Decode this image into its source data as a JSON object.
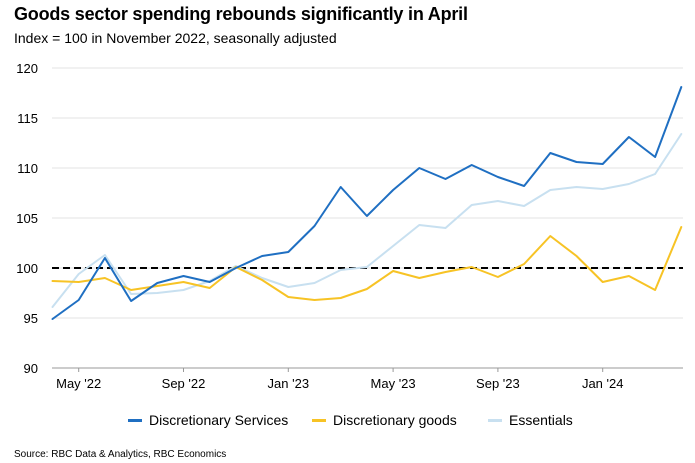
{
  "title": "Goods sector spending rebounds significantly in April",
  "subtitle": "Index = 100 in November 2022, seasonally adjusted",
  "source": "Source: RBC Data & Analytics, RBC Economics",
  "colors": {
    "discretionary_services": "#1f6fc2",
    "discretionary_goods": "#f7c325",
    "essentials": "#c8e0f0",
    "reference_line": "#000000",
    "grid": "#e3e3e3"
  },
  "chart_data": {
    "type": "line",
    "title": "Goods sector spending rebounds significantly in April",
    "subtitle": "Index = 100 in November 2022, seasonally adjusted",
    "xlabel": "",
    "ylabel": "",
    "ylim": [
      90,
      120
    ],
    "yticks": [
      90,
      95,
      100,
      105,
      110,
      115,
      120
    ],
    "grid": true,
    "legend_position": "bottom",
    "x": [
      "Apr 2022",
      "May 2022",
      "Jun 2022",
      "Jul 2022",
      "Aug 2022",
      "Sep 2022",
      "Oct 2022",
      "Nov 2022",
      "Dec 2022",
      "Jan 2023",
      "Feb 2023",
      "Mar 2023",
      "Apr 2023",
      "May 2023",
      "Jun 2023",
      "Jul 2023",
      "Aug 2023",
      "Sep 2023",
      "Oct 2023",
      "Nov 2023",
      "Dec 2023",
      "Jan 2024",
      "Feb 2024",
      "Mar 2024",
      "Apr 2024"
    ],
    "xtick_labels": [
      {
        "index": 1,
        "label": "May '22"
      },
      {
        "index": 5,
        "label": "Sep '22"
      },
      {
        "index": 9,
        "label": "Jan '23"
      },
      {
        "index": 13,
        "label": "May '23"
      },
      {
        "index": 17,
        "label": "Sep '23"
      },
      {
        "index": 21,
        "label": "Jan '24"
      }
    ],
    "reference_line": {
      "value": 100,
      "style": "dashed"
    },
    "series": [
      {
        "name": "Discretionary Services",
        "key": "discretionary_services",
        "values": [
          94.9,
          96.8,
          101.0,
          96.7,
          98.5,
          99.2,
          98.6,
          100.0,
          101.2,
          101.6,
          104.2,
          108.1,
          105.2,
          107.8,
          110.0,
          108.9,
          110.3,
          109.1,
          108.2,
          111.5,
          110.6,
          110.4,
          113.1,
          111.1,
          118.1
        ]
      },
      {
        "name": "Discretionary goods",
        "key": "discretionary_goods",
        "values": [
          98.7,
          98.6,
          99.0,
          97.8,
          98.2,
          98.6,
          98.0,
          100.1,
          98.8,
          97.1,
          96.8,
          97.0,
          97.9,
          99.7,
          99.0,
          99.6,
          100.1,
          99.1,
          100.4,
          103.2,
          101.2,
          98.6,
          99.2,
          97.8,
          104.1
        ]
      },
      {
        "name": "Essentials",
        "key": "essentials",
        "values": [
          96.1,
          99.4,
          101.3,
          97.4,
          97.5,
          97.8,
          98.7,
          100.2,
          99.0,
          98.1,
          98.5,
          99.8,
          100.1,
          102.2,
          104.3,
          104.0,
          106.3,
          106.7,
          106.2,
          107.8,
          108.1,
          107.9,
          108.4,
          109.4,
          113.4
        ]
      }
    ]
  }
}
